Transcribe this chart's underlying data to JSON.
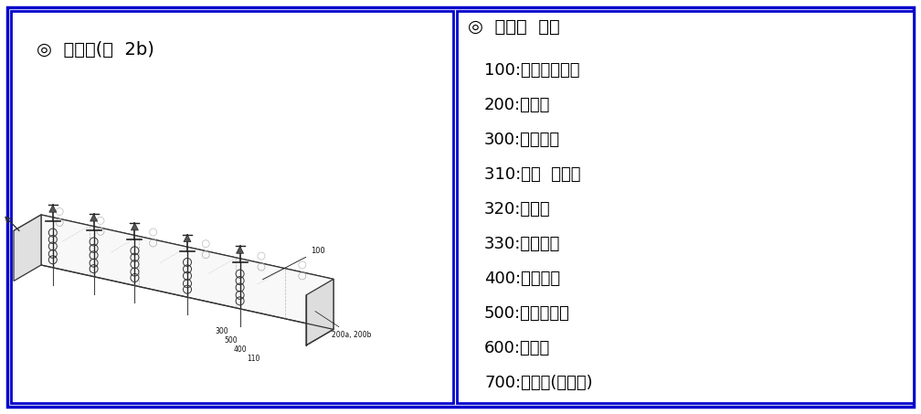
{
  "bg_color": "#ffffff",
  "border_color": "#0000cc",
  "border_linewidth": 2.0,
  "left_title": "◎  대표도(도  2b)",
  "right_title": "◎  부호의  설명",
  "right_items": [
    "100:피보강구조물",
    "200:정착구",
    "300:아이볼트",
    "310:환형  머리부",
    "320:볼트부",
    "330:체결너트",
    "400:압접부재",
    "500:와이어로프",
    "600:피복층",
    "700:슬래브(바닥판)"
  ],
  "title_fontsize": 14,
  "item_fontsize": 13,
  "text_color": "#000000",
  "left_panel_bg": "#ffffff",
  "right_panel_bg": "#ffffff"
}
